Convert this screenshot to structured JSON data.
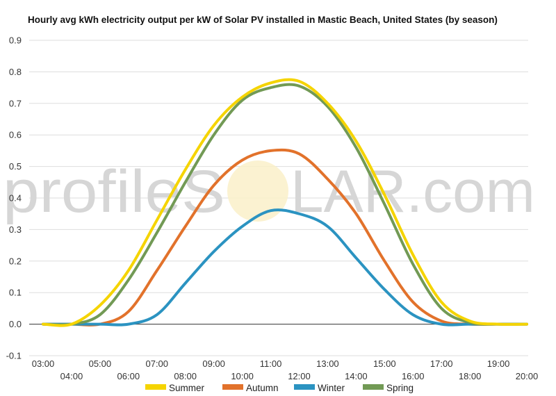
{
  "watermark": {
    "left": "profileS",
    "right": "LAR.com"
  },
  "chart_data": {
    "type": "line",
    "title": "Hourly avg kWh electricity output per kW of Solar PV installed in Mastic Beach, United States (by season)",
    "xlabel": "",
    "ylabel": "",
    "x": [
      "03:00",
      "04:00",
      "05:00",
      "06:00",
      "07:00",
      "08:00",
      "09:00",
      "10:00",
      "11:00",
      "12:00",
      "13:00",
      "14:00",
      "15:00",
      "16:00",
      "17:00",
      "18:00",
      "19:00",
      "20:00"
    ],
    "ylim": [
      -0.1,
      0.9
    ],
    "yticks": [
      "-0.1",
      "0.0",
      "0.1",
      "0.2",
      "0.3",
      "0.4",
      "0.5",
      "0.6",
      "0.7",
      "0.8",
      "0.9"
    ],
    "grid": true,
    "legend": "bottom",
    "series": [
      {
        "name": "Summer",
        "color": "#f5d400",
        "values": [
          0.0,
          0.0,
          0.06,
          0.17,
          0.33,
          0.49,
          0.63,
          0.72,
          0.765,
          0.77,
          0.7,
          0.58,
          0.41,
          0.22,
          0.07,
          0.01,
          0.0,
          0.0
        ]
      },
      {
        "name": "Autumn",
        "color": "#e2722b",
        "values": [
          0.0,
          0.0,
          0.0,
          0.04,
          0.17,
          0.31,
          0.44,
          0.52,
          0.55,
          0.54,
          0.46,
          0.35,
          0.2,
          0.07,
          0.01,
          0.0,
          0.0,
          0.0
        ]
      },
      {
        "name": "Winter",
        "color": "#2b93c1",
        "values": [
          0.0,
          0.0,
          0.0,
          0.0,
          0.03,
          0.13,
          0.23,
          0.31,
          0.36,
          0.35,
          0.31,
          0.21,
          0.11,
          0.03,
          0.0,
          0.0,
          0.0,
          0.0
        ]
      },
      {
        "name": "Spring",
        "color": "#729a55",
        "values": [
          0.0,
          0.0,
          0.03,
          0.14,
          0.29,
          0.45,
          0.6,
          0.71,
          0.75,
          0.755,
          0.69,
          0.56,
          0.38,
          0.19,
          0.05,
          0.005,
          0.0,
          0.0
        ]
      }
    ]
  }
}
